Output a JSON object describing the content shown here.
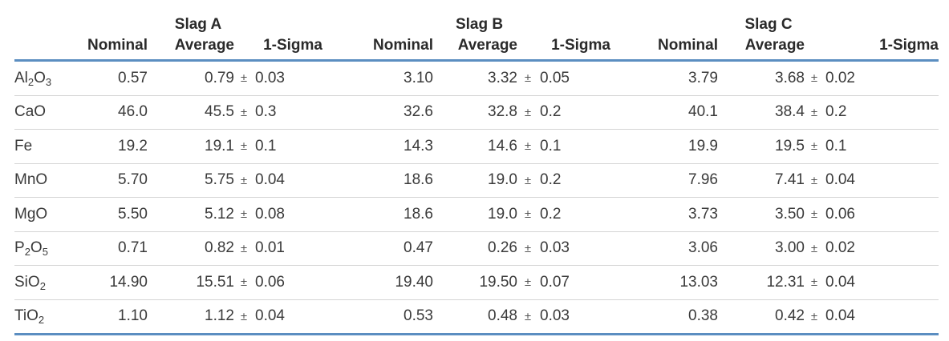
{
  "groups": [
    "Slag A",
    "Slag B",
    "Slag C"
  ],
  "columns": {
    "nominal": "Nominal",
    "average": "Average",
    "sigma": "1-Sigma",
    "pm": "±"
  },
  "rows": [
    {
      "formula": [
        "Al",
        "2",
        "O",
        "3"
      ],
      "vals": [
        [
          "0.57",
          "0.79",
          "0.03"
        ],
        [
          "3.10",
          "3.32",
          "0.05"
        ],
        [
          "3.79",
          "3.68",
          "0.02"
        ]
      ]
    },
    {
      "formula": [
        "CaO"
      ],
      "vals": [
        [
          "46.0",
          "45.5",
          "0.3"
        ],
        [
          "32.6",
          "32.8",
          "0.2"
        ],
        [
          "40.1",
          "38.4",
          "0.2"
        ]
      ]
    },
    {
      "formula": [
        "Fe"
      ],
      "vals": [
        [
          "19.2",
          "19.1",
          "0.1"
        ],
        [
          "14.3",
          "14.6",
          "0.1"
        ],
        [
          "19.9",
          "19.5",
          "0.1"
        ]
      ]
    },
    {
      "formula": [
        "MnO"
      ],
      "vals": [
        [
          "5.70",
          "5.75",
          "0.04"
        ],
        [
          "18.6",
          "19.0",
          "0.2"
        ],
        [
          "7.96",
          "7.41",
          "0.04"
        ]
      ]
    },
    {
      "formula": [
        "MgO"
      ],
      "vals": [
        [
          "5.50",
          "5.12",
          "0.08"
        ],
        [
          "18.6",
          "19.0",
          "0.2"
        ],
        [
          "3.73",
          "3.50",
          "0.06"
        ]
      ]
    },
    {
      "formula": [
        "P",
        "2",
        "O",
        "5"
      ],
      "vals": [
        [
          "0.71",
          "0.82",
          "0.01"
        ],
        [
          "0.47",
          "0.26",
          "0.03"
        ],
        [
          "3.06",
          "3.00",
          "0.02"
        ]
      ]
    },
    {
      "formula": [
        "SiO",
        "2"
      ],
      "vals": [
        [
          "14.90",
          "15.51",
          "0.06"
        ],
        [
          "19.40",
          "19.50",
          "0.07"
        ],
        [
          "13.03",
          "12.31",
          "0.04"
        ]
      ]
    },
    {
      "formula": [
        "TiO",
        "2"
      ],
      "vals": [
        [
          "1.10",
          "1.12",
          "0.04"
        ],
        [
          "0.53",
          "0.48",
          "0.03"
        ],
        [
          "0.38",
          "0.42",
          "0.04"
        ]
      ]
    }
  ]
}
